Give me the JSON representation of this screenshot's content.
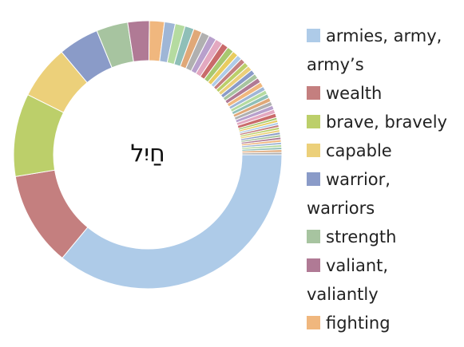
{
  "chart_data": {
    "type": "donut",
    "center_label": "חַיִל",
    "categories": [
      "armies, army, army’s",
      "wealth",
      "brave, bravely",
      "capable",
      "warrior, warriors",
      "strength",
      "valiant, valiantly",
      "fighting",
      null,
      null,
      null,
      null,
      null,
      null,
      null,
      null,
      null,
      null,
      null,
      null,
      null,
      null,
      null,
      null,
      null,
      null,
      null,
      null,
      null,
      null,
      null,
      null,
      null,
      null,
      null,
      null,
      null,
      null,
      null,
      null,
      null,
      null,
      null,
      null,
      null,
      null,
      null,
      null,
      null
    ],
    "values": [
      36,
      11.4,
      10,
      6.5,
      4.9,
      3.8,
      2.6,
      1.8,
      1.3,
      1.2,
      1.1,
      1.0,
      1.0,
      0.9,
      0.9,
      0.8,
      0.8,
      0.7,
      0.6,
      0.6,
      0.6,
      0.6,
      0.6,
      0.6,
      0.6,
      0.6,
      0.5,
      0.5,
      0.5,
      0.5,
      0.5,
      0.5,
      0.5,
      0.5,
      0.3,
      0.3,
      0.3,
      0.3,
      0.3,
      0.3,
      0.3,
      0.3,
      0.3,
      0.3,
      0.3,
      0.3,
      0.3,
      0.3,
      0.3
    ],
    "colors": [
      "#aecbe8",
      "#c47f7f",
      "#bccf6a",
      "#ecd07a",
      "#8a9bc8",
      "#a7c4a0",
      "#b07a95",
      "#f0b77e",
      "#9fb6d6",
      "#b5dba0",
      "#8fbfb8",
      "#e0a878",
      "#b0b0b0",
      "#b8a0cc",
      "#e3a8c0",
      "#c96a6a",
      "#a8c870",
      "#e8cc60"
    ]
  }
}
